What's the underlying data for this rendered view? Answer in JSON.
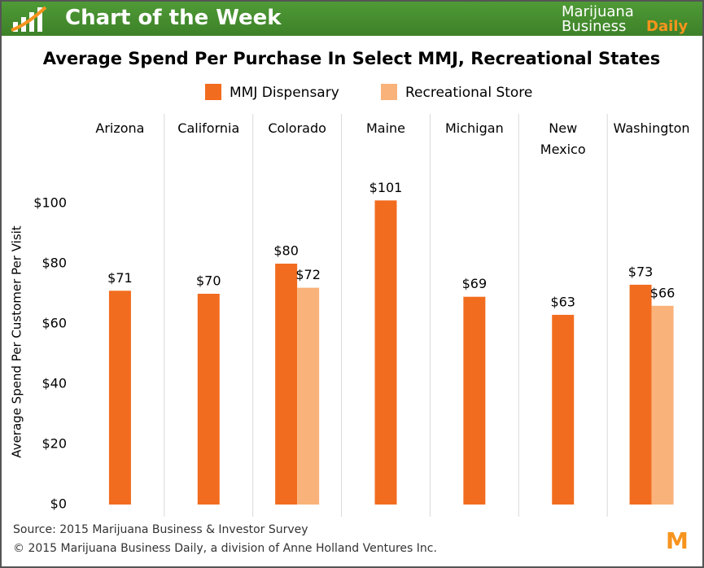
{
  "header": {
    "title": "Chart of the Week",
    "brand": [
      "Marijuana",
      "Business",
      "Daily"
    ]
  },
  "chart_data": {
    "type": "bar",
    "title": "Average Spend Per Purchase In Select MMJ, Recreational States",
    "y_label": "Average Spend Per Customer Per Visit",
    "categories": [
      "Arizona",
      "California",
      "Colorado",
      "Maine",
      "Michigan",
      "New Mexico",
      "Washington"
    ],
    "series": [
      {
        "name": "MMJ Dispensary",
        "color": "#f26c1f",
        "values": [
          71,
          70,
          80,
          101,
          69,
          63,
          73
        ],
        "value_labels": [
          "$71",
          "$70",
          "$80",
          "$101",
          "$69",
          "$63",
          "$73"
        ]
      },
      {
        "name": "Recreational Store",
        "color": "#f9b27a",
        "values": [
          null,
          null,
          72,
          null,
          null,
          null,
          66
        ],
        "value_labels": [
          null,
          null,
          "$72",
          null,
          null,
          null,
          "$66"
        ]
      }
    ],
    "ylim": [
      0,
      100
    ],
    "yticks": [
      {
        "value": 0,
        "label": "$0"
      },
      {
        "value": 20,
        "label": "$20"
      },
      {
        "value": 40,
        "label": "$40"
      },
      {
        "value": 60,
        "label": "$60"
      },
      {
        "value": 80,
        "label": "$80"
      },
      {
        "value": 100,
        "label": "$100"
      }
    ],
    "grid": false
  },
  "footer": {
    "source": "Source: 2015 Marijuana Business & Investor Survey",
    "copyright": "© 2015 Marijuana Business Daily, a division of Anne Holland Ventures Inc."
  }
}
